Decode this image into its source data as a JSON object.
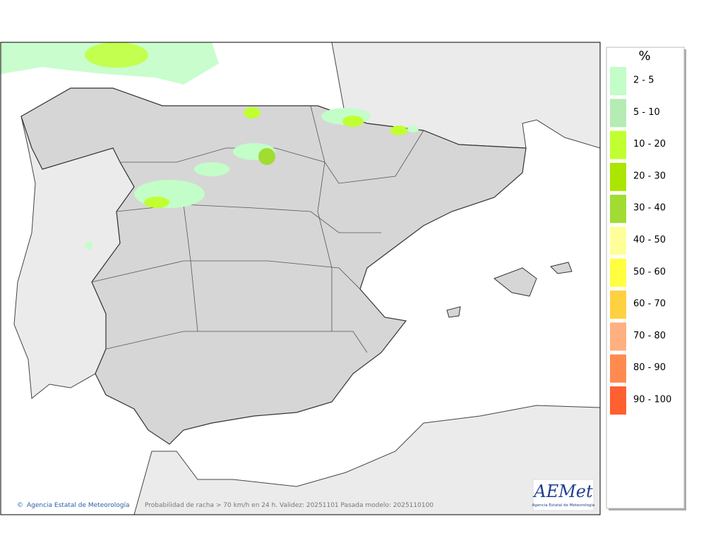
{
  "map": {
    "credit": "Agencia Estatal de Meteorología",
    "caption": "Probabilidad de racha > 70 km/h en 24 h. Validez: 20251101 Pasada modelo: 2025110100",
    "logo": {
      "text": "AEMet",
      "subtitle": "Agencia Estatal de Meteorología"
    }
  },
  "legend": {
    "title": "%",
    "items": [
      {
        "label": "2 - 5",
        "color": "#c3fdc8"
      },
      {
        "label": "5 - 10",
        "color": "#b4ecb4"
      },
      {
        "label": "10 - 20",
        "color": "#c0ff30"
      },
      {
        "label": "20 - 30",
        "color": "#aae600"
      },
      {
        "label": "30 - 40",
        "color": "#a0dc32"
      },
      {
        "label": "40 - 50",
        "color": "#ffff99"
      },
      {
        "label": "50 - 60",
        "color": "#ffff40"
      },
      {
        "label": "60 - 70",
        "color": "#ffd040"
      },
      {
        "label": "70 - 80",
        "color": "#ffb080"
      },
      {
        "label": "80 - 90",
        "color": "#ff8a50"
      },
      {
        "label": "90 - 100",
        "color": "#ff6030"
      }
    ]
  }
}
